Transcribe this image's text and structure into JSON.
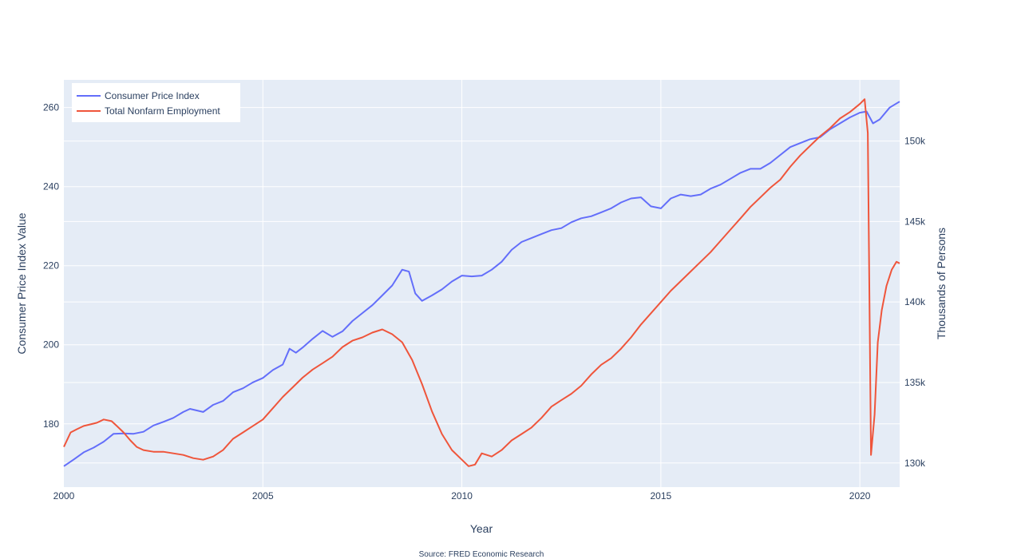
{
  "chart_data": {
    "type": "line",
    "xlabel": "Year",
    "ylabel": "Consumer Price Index Value",
    "y2label": "Thousands of Persons",
    "source": "Source: FRED Economic Research",
    "xlim": [
      2000,
      2021
    ],
    "ylim": [
      164,
      267
    ],
    "y2lim": [
      128500,
      153800
    ],
    "x_ticks": [
      2000,
      2005,
      2010,
      2015,
      2020
    ],
    "y_ticks": [
      180,
      200,
      220,
      240,
      260
    ],
    "y2_ticks": [
      130000,
      135000,
      140000,
      145000,
      150000
    ],
    "y2_tick_labels": [
      "130k",
      "135k",
      "140k",
      "145k",
      "150k"
    ],
    "legend_position": "top-left",
    "grid": true,
    "series": [
      {
        "name": "Consumer Price Index",
        "axis": "left",
        "color": "#636efa",
        "x": [
          2000.0,
          2000.25,
          2000.5,
          2000.75,
          2001.0,
          2001.25,
          2001.5,
          2001.75,
          2002.0,
          2002.25,
          2002.5,
          2002.75,
          2003.0,
          2003.17,
          2003.5,
          2003.75,
          2004.0,
          2004.25,
          2004.5,
          2004.75,
          2005.0,
          2005.25,
          2005.5,
          2005.67,
          2005.83,
          2006.0,
          2006.25,
          2006.5,
          2006.75,
          2007.0,
          2007.25,
          2007.5,
          2007.75,
          2008.0,
          2008.25,
          2008.5,
          2008.67,
          2008.83,
          2009.0,
          2009.25,
          2009.5,
          2009.75,
          2010.0,
          2010.25,
          2010.5,
          2010.75,
          2011.0,
          2011.25,
          2011.5,
          2011.75,
          2012.0,
          2012.25,
          2012.5,
          2012.75,
          2013.0,
          2013.25,
          2013.5,
          2013.75,
          2014.0,
          2014.25,
          2014.5,
          2014.75,
          2015.0,
          2015.25,
          2015.5,
          2015.75,
          2016.0,
          2016.25,
          2016.5,
          2016.75,
          2017.0,
          2017.25,
          2017.5,
          2017.75,
          2018.0,
          2018.25,
          2018.5,
          2018.75,
          2019.0,
          2019.25,
          2019.5,
          2019.75,
          2020.0,
          2020.17,
          2020.33,
          2020.5,
          2020.75,
          2021.0
        ],
        "y": [
          169.3,
          171.0,
          172.8,
          174.0,
          175.5,
          177.5,
          177.6,
          177.5,
          178.0,
          179.6,
          180.5,
          181.5,
          183.0,
          183.8,
          183.0,
          184.8,
          185.8,
          188.0,
          189.0,
          190.5,
          191.6,
          193.6,
          195.0,
          199.0,
          198.0,
          199.3,
          201.5,
          203.5,
          202.0,
          203.4,
          206.0,
          208.0,
          210.0,
          212.5,
          215.0,
          219.0,
          218.5,
          213.0,
          211.1,
          212.5,
          214.0,
          216.0,
          217.5,
          217.3,
          217.5,
          219.0,
          221.0,
          224.0,
          226.0,
          227.0,
          228.0,
          229.0,
          229.5,
          231.0,
          232.0,
          232.5,
          233.5,
          234.5,
          236.0,
          237.0,
          237.3,
          235.0,
          234.5,
          237.0,
          238.0,
          237.6,
          238.0,
          239.5,
          240.5,
          242.0,
          243.5,
          244.5,
          244.5,
          246.0,
          248.0,
          250.0,
          251.0,
          252.0,
          252.5,
          254.5,
          256.0,
          257.5,
          258.7,
          259.0,
          256.0,
          257.0,
          260.0,
          261.5
        ]
      },
      {
        "name": "Total Nonfarm Employment",
        "axis": "right",
        "color": "#ef553b",
        "x": [
          2000.0,
          2000.17,
          2000.33,
          2000.5,
          2000.67,
          2000.83,
          2001.0,
          2001.2,
          2001.33,
          2001.5,
          2001.67,
          2001.83,
          2002.0,
          2002.25,
          2002.5,
          2002.75,
          2003.0,
          2003.25,
          2003.5,
          2003.75,
          2004.0,
          2004.25,
          2004.5,
          2004.75,
          2005.0,
          2005.25,
          2005.5,
          2005.75,
          2006.0,
          2006.25,
          2006.5,
          2006.75,
          2007.0,
          2007.25,
          2007.5,
          2007.75,
          2008.0,
          2008.25,
          2008.5,
          2008.75,
          2009.0,
          2009.25,
          2009.5,
          2009.75,
          2010.0,
          2010.17,
          2010.33,
          2010.5,
          2010.75,
          2011.0,
          2011.25,
          2011.5,
          2011.75,
          2012.0,
          2012.25,
          2012.5,
          2012.75,
          2013.0,
          2013.25,
          2013.5,
          2013.75,
          2014.0,
          2014.25,
          2014.5,
          2014.75,
          2015.0,
          2015.25,
          2015.5,
          2015.75,
          2016.0,
          2016.25,
          2016.5,
          2016.75,
          2017.0,
          2017.25,
          2017.5,
          2017.75,
          2018.0,
          2018.25,
          2018.5,
          2018.75,
          2019.0,
          2019.25,
          2019.5,
          2019.75,
          2020.0,
          2020.12,
          2020.2,
          2020.28,
          2020.37,
          2020.45,
          2020.55,
          2020.67,
          2020.8,
          2020.92,
          2021.0
        ],
        "y": [
          131.0,
          131.9,
          132.1,
          132.3,
          132.4,
          132.5,
          132.7,
          132.6,
          132.3,
          131.9,
          131.4,
          131.0,
          130.8,
          130.7,
          130.7,
          130.6,
          130.5,
          130.3,
          130.2,
          130.4,
          130.8,
          131.5,
          131.9,
          132.3,
          132.7,
          133.4,
          134.1,
          134.7,
          135.3,
          135.8,
          136.2,
          136.6,
          137.2,
          137.6,
          137.8,
          138.1,
          138.3,
          138.0,
          137.5,
          136.4,
          134.9,
          133.2,
          131.8,
          130.8,
          130.2,
          129.8,
          129.9,
          130.6,
          130.4,
          130.8,
          131.4,
          131.8,
          132.2,
          132.8,
          133.5,
          133.9,
          134.3,
          134.8,
          135.5,
          136.1,
          136.5,
          137.1,
          137.8,
          138.6,
          139.3,
          140.0,
          140.7,
          141.3,
          141.9,
          142.5,
          143.1,
          143.8,
          144.5,
          145.2,
          145.9,
          146.5,
          147.1,
          147.6,
          148.4,
          149.1,
          149.7,
          150.3,
          150.8,
          151.4,
          151.8,
          152.3,
          152.6,
          150.5,
          130.5,
          133.0,
          137.5,
          139.5,
          141.0,
          142.0,
          142.5,
          142.4
        ]
      }
    ]
  }
}
